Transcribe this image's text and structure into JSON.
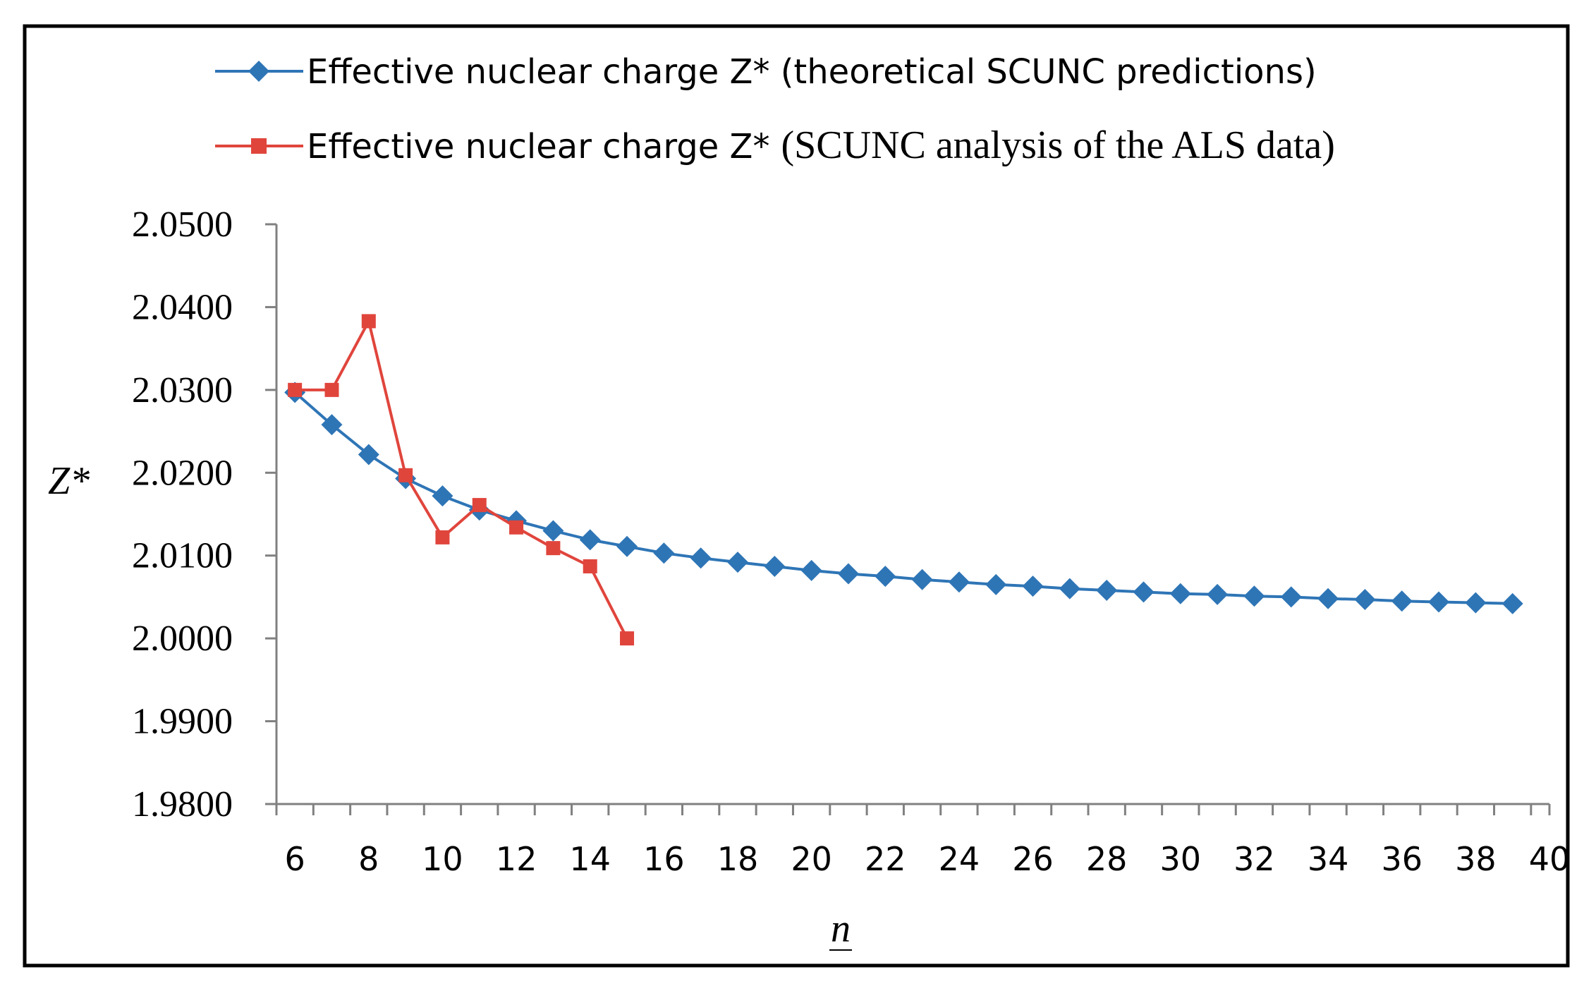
{
  "chart_data": {
    "type": "line",
    "title": "",
    "xlabel": "n",
    "ylabel": "Z*",
    "xlim": [
      5.5,
      40
    ],
    "ylim": [
      1.98,
      2.05
    ],
    "x_ticks": [
      6,
      8,
      10,
      12,
      14,
      16,
      18,
      20,
      22,
      24,
      26,
      28,
      30,
      32,
      34,
      36,
      38,
      40
    ],
    "y_ticks": [
      1.98,
      1.99,
      2.0,
      2.01,
      2.02,
      2.03,
      2.04,
      2.05
    ],
    "y_tick_labels": [
      "1.9800",
      "1.9900",
      "2.0000",
      "2.0100",
      "2.0200",
      "2.0300",
      "2.0400",
      "2.0500"
    ],
    "legend_position": "top",
    "grid": false,
    "series": [
      {
        "name": "Effective nuclear charge Z* (theoretical SCUNC predictions)",
        "color": "#2E75B6",
        "marker": "diamond",
        "x": [
          6,
          7,
          8,
          9,
          10,
          11,
          12,
          13,
          14,
          15,
          16,
          17,
          18,
          19,
          20,
          21,
          22,
          23,
          24,
          25,
          26,
          27,
          28,
          29,
          30,
          31,
          32,
          33,
          34,
          35,
          36,
          37,
          38,
          39
        ],
        "values": [
          2.0297,
          2.0258,
          2.0222,
          2.0193,
          2.0172,
          2.0155,
          2.0142,
          2.013,
          2.0119,
          2.0111,
          2.0103,
          2.0097,
          2.0092,
          2.0087,
          2.0082,
          2.0078,
          2.0075,
          2.0071,
          2.0068,
          2.0065,
          2.0063,
          2.006,
          2.0058,
          2.0056,
          2.0054,
          2.0053,
          2.0051,
          2.005,
          2.0048,
          2.0047,
          2.0045,
          2.0044,
          2.0043,
          2.0042
        ]
      },
      {
        "name": "Effective nuclear charge Z* (SCUNC analysis of the ALS data)",
        "color": "#E0453C",
        "marker": "square",
        "x": [
          6,
          7,
          8,
          9,
          10,
          11,
          12,
          13,
          14,
          15
        ],
        "values": [
          2.03,
          2.03,
          2.0383,
          2.0197,
          2.0122,
          2.0161,
          2.0134,
          2.0109,
          2.0087,
          2.0
        ]
      }
    ]
  },
  "legend": {
    "entry1": "Effective nuclear charge Z* (theoretical SCUNC predictions)",
    "entry2_prefix": "Effective nuclear charge Z*",
    "entry2_suffix": "(SCUNC analysis of the ALS data)"
  }
}
